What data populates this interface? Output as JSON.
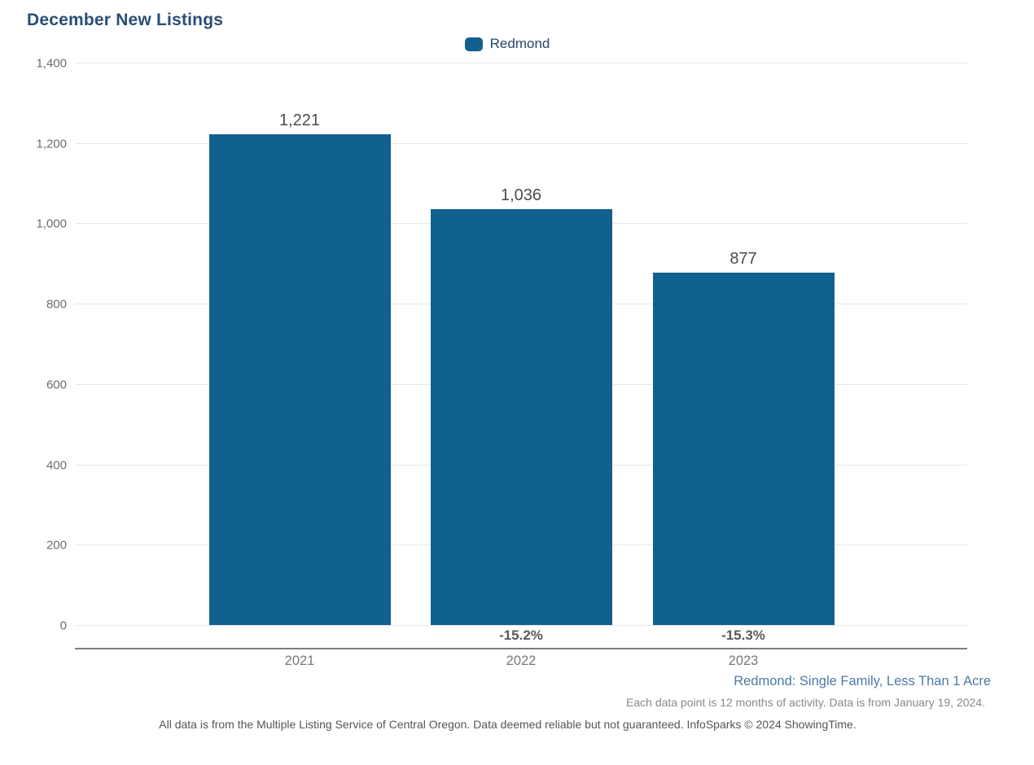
{
  "title": "December New Listings",
  "legend": {
    "label": "Redmond"
  },
  "colors": {
    "bar": "#11618F",
    "title": "#2A4E76",
    "legend_text": "#24476C",
    "grid": "#E7E7E7",
    "axis_line": "#7D7D7D",
    "ytick_text": "#6B6C6E",
    "xtick_text": "#77787A",
    "value_label_text": "#4B4C4E",
    "pct_label_text": "#59595B",
    "context_text": "#4A7AA8",
    "note_text": "#87898C",
    "disclaimer_text": "#545557"
  },
  "chart_data": {
    "type": "bar",
    "title": "December New Listings",
    "categories": [
      "2021",
      "2022",
      "2023"
    ],
    "series": [
      {
        "name": "Redmond",
        "values": [
          1221,
          1036,
          877
        ],
        "value_labels": [
          "1,221",
          "1,036",
          "877"
        ],
        "pct_change_labels": [
          "",
          "-15.2%",
          "-15.3%"
        ]
      }
    ],
    "xlabel": "",
    "ylabel": "",
    "ylim": [
      0,
      1400
    ],
    "ytick_interval": 200,
    "yticks": [
      0,
      200,
      400,
      600,
      800,
      1000,
      1200,
      1400
    ],
    "ytick_labels": [
      "0",
      "200",
      "400",
      "600",
      "800",
      "1,000",
      "1,200",
      "1,400"
    ],
    "grid": "horizontal",
    "legend_position": "top-center"
  },
  "footer": {
    "context_line": "Redmond: Single Family, Less Than 1 Acre",
    "note_line": "Each data point is 12 months of activity. Data is from January 19, 2024.",
    "disclaimer_line": "All data is from the Multiple Listing Service of Central Oregon. Data deemed reliable but not guaranteed. InfoSparks © 2024 ShowingTime."
  }
}
